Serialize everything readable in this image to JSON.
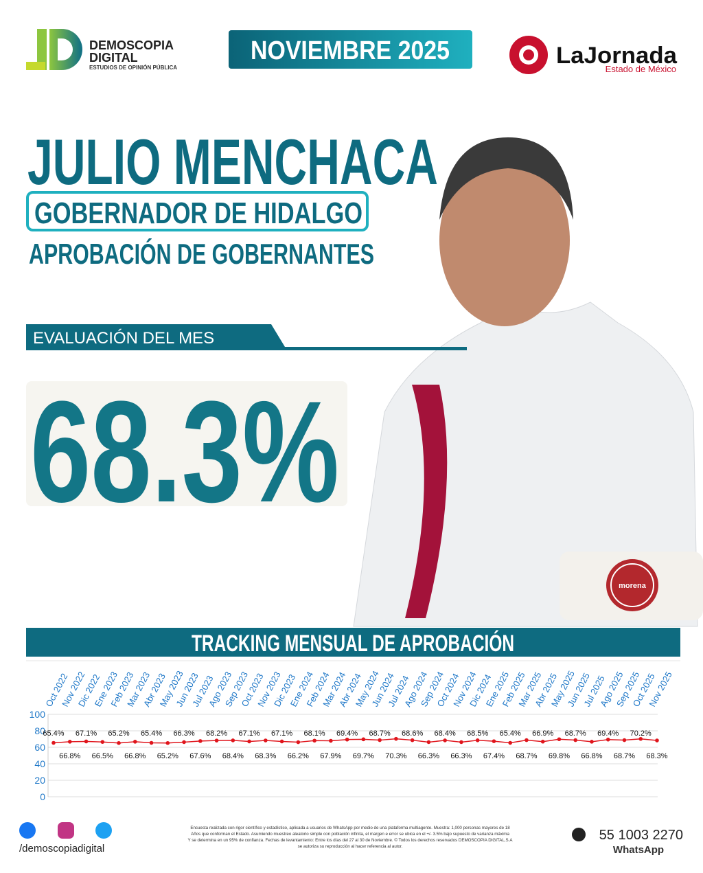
{
  "header": {
    "logo_line1": "DEMOSCOPIA",
    "logo_line2": "DIGITAL",
    "logo_tagline": "ESTUDIOS DE OPINIÓN PÚBLICA",
    "date_banner": "NOVIEMBRE 2025",
    "partner_name": "LaJornada",
    "partner_region": "Estado de México"
  },
  "hero": {
    "name": "JULIO MENCHACA",
    "position": "GOBERNADOR DE HIDALGO",
    "subtitle": "APROBACIÓN DE GOBERNANTES",
    "evaluation_label": "EVALUACIÓN DEL MES",
    "evaluation_value": "68.3%",
    "party": "morena"
  },
  "chart_data": {
    "type": "line",
    "title": "TRACKING MENSUAL DE APROBACIÓN",
    "categories": [
      "Oct 2022",
      "Nov 2022",
      "Dic 2022",
      "Ene 2023",
      "Feb 2023",
      "Mar 2023",
      "Abr 2023",
      "May 2023",
      "Jun 2023",
      "Jul 2023",
      "Ago 2023",
      "Sep 2023",
      "Oct 2023",
      "Nov 2023",
      "Dic 2023",
      "Ene 2024",
      "Feb 2024",
      "Mar 2024",
      "Abr 2024",
      "May 2024",
      "Jun 2024",
      "Jul 2024",
      "Ago 2024",
      "Sep 2024",
      "Oct 2024",
      "Nov 2024",
      "Dic 2024",
      "Ene 2025",
      "Feb 2025",
      "Mar 2025",
      "Abr 2025",
      "May 2025",
      "Jun 2025",
      "Jul 2025",
      "Ago 2025",
      "Sep 2025",
      "Oct 2025",
      "Nov 2025"
    ],
    "values": [
      65.4,
      66.8,
      67.1,
      66.5,
      65.2,
      66.8,
      65.4,
      65.2,
      66.3,
      67.6,
      68.2,
      68.4,
      67.1,
      68.3,
      67.1,
      66.2,
      68.1,
      67.9,
      69.4,
      69.7,
      68.7,
      70.3,
      68.6,
      66.3,
      68.4,
      66.3,
      68.5,
      67.4,
      65.4,
      68.7,
      66.9,
      69.8,
      68.7,
      66.8,
      69.4,
      68.7,
      70.2,
      68.3
    ],
    "value_labels": [
      "65.4%",
      "66.8%",
      "67.1%",
      "66.5%",
      "65.2%",
      "66.8%",
      "65.4%",
      "65.2%",
      "66.3%",
      "67.6%",
      "68.2%",
      "68.4%",
      "67.1%",
      "68.3%",
      "67.1%",
      "66.2%",
      "68.1%",
      "67.9%",
      "69.4%",
      "69.7%",
      "68.7%",
      "70.3%",
      "68.6%",
      "66.3%",
      "68.4%",
      "66.3%",
      "68.5%",
      "67.4%",
      "65.4%",
      "68.7%",
      "66.9%",
      "69.8%",
      "68.7%",
      "66.8%",
      "69.4%",
      "68.7%",
      "70.2%",
      "68.3%"
    ],
    "color": "#e0151c",
    "ylim": [
      0,
      100
    ],
    "yticks": [
      0,
      20,
      40,
      60,
      80,
      100
    ],
    "grid": true
  },
  "footer": {
    "handle": "/demoscopiadigital",
    "disclaimer": [
      "Encuesta realizada con rigor científico y estadístico, aplicada a usuarios de WhatsApp por medio de una plataforma multiagente. Muestra: 1,000 personas mayores de 18",
      "Años que conforman el Estado. Asumiendo muestreo aleatorio simple con población infinita, el margen e error se ubica en el +/- 3.5% bajo supuesto de varianza máxima",
      "Y se determina en un 95% de confianza. Fechas de levantamiento: Entre los días del 27 al 30 de Noviembre. © Todos los derechos reservados DEMOSCOPIA DIGITAL,S.A",
      "se autoriza su reproducción al hacer referencia al autor."
    ],
    "phone": "55 1003 2270",
    "phone_label": "WhatsApp"
  }
}
